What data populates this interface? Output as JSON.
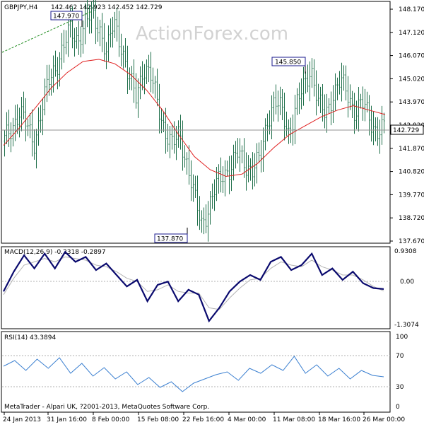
{
  "header": {
    "symbol_text": "GBPJPY,H4",
    "ohlc_text": "142.462 142.923 142.452 142.729"
  },
  "watermark": "ActionForex.com",
  "footer": "MetaTrader - Alpari UK, ?2001-2013, MetaQuotes Software Corp.",
  "colors": {
    "background": "#ffffff",
    "candle": "#1f6f4a",
    "moving_average": "#e02020",
    "macd_line": "#0a0a6e",
    "signal_line": "#b4b4b4",
    "rsi_line": "#3a7fd0",
    "trendline": "#1b8a1b",
    "label_box": "#1a1a8c"
  },
  "chart_data": [
    {
      "type": "candlestick",
      "title": "GBPJPY,H4",
      "ylim": [
        137.2,
        148.4
      ],
      "y_ticks": [
        "148.170",
        "147.120",
        "146.070",
        "145.020",
        "143.970",
        "142.920",
        "141.870",
        "140.820",
        "139.770",
        "138.720",
        "137.670"
      ],
      "current_price": "142.729",
      "overlay": "moving average",
      "annotations": [
        {
          "label": "147.970",
          "value": 147.97
        },
        {
          "label": "145.850",
          "value": 145.85
        },
        {
          "label": "137.870",
          "value": 137.87
        }
      ],
      "close_series": [
        142.2,
        142.8,
        143.6,
        142.9,
        142.1,
        143.5,
        144.8,
        145.6,
        146.4,
        147.2,
        146.8,
        147.5,
        147.9,
        147.4,
        146.1,
        147.6,
        146.6,
        145.0,
        144.2,
        145.6,
        145.1,
        143.9,
        142.7,
        141.9,
        142.6,
        141.2,
        139.6,
        138.5,
        139.2,
        140.1,
        140.8,
        141.0,
        141.6,
        141.2,
        140.9,
        141.3,
        143.2,
        144.0,
        143.5,
        142.6,
        143.8,
        144.6,
        145.6,
        143.9,
        143.3,
        144.4,
        144.9,
        144.3,
        143.6,
        143.9,
        143.2,
        142.7,
        142.73
      ],
      "ma_series": [
        142.0,
        142.8,
        143.7,
        144.6,
        145.3,
        145.8,
        145.9,
        145.7,
        145.2,
        144.5,
        143.6,
        142.5,
        141.5,
        140.9,
        140.6,
        140.7,
        141.2,
        141.9,
        142.5,
        142.9,
        143.3,
        143.6,
        143.8,
        143.6,
        143.4
      ]
    },
    {
      "type": "line",
      "title": "MACD(12,26,9) -0.2318 -0.2897",
      "y_ticks": [
        "0.9308",
        "0.00",
        "-1.3074"
      ],
      "ylim": [
        -1.3074,
        0.9308
      ],
      "series": [
        {
          "name": "MACD",
          "values": [
            -0.3,
            0.3,
            0.8,
            0.4,
            0.85,
            0.4,
            0.9,
            0.6,
            0.75,
            0.35,
            0.55,
            0.2,
            -0.15,
            0.05,
            -0.6,
            -0.1,
            0.0,
            -0.6,
            -0.25,
            -0.4,
            -1.2,
            -0.8,
            -0.3,
            0.0,
            0.2,
            0.05,
            0.6,
            0.75,
            0.35,
            0.5,
            0.85,
            0.2,
            0.4,
            0.05,
            0.3,
            -0.05,
            -0.2,
            -0.23
          ]
        },
        {
          "name": "Signal",
          "values": [
            -0.4,
            0.1,
            0.5,
            0.6,
            0.7,
            0.6,
            0.75,
            0.7,
            0.65,
            0.5,
            0.45,
            0.3,
            0.1,
            0.0,
            -0.3,
            -0.25,
            -0.1,
            -0.3,
            -0.35,
            -0.35,
            -0.8,
            -0.85,
            -0.5,
            -0.2,
            0.05,
            0.1,
            0.4,
            0.6,
            0.5,
            0.45,
            0.65,
            0.45,
            0.35,
            0.2,
            0.2,
            0.05,
            -0.15,
            -0.29
          ]
        }
      ]
    },
    {
      "type": "line",
      "title": "RSI(14) 43.3894",
      "y_ticks": [
        "100",
        "70",
        "30",
        "0"
      ],
      "ylim": [
        0,
        100
      ],
      "series": [
        {
          "name": "RSI",
          "values": [
            58,
            66,
            52,
            68,
            55,
            70,
            48,
            62,
            44,
            56,
            40,
            50,
            32,
            42,
            28,
            36,
            22,
            34,
            40,
            46,
            50,
            38,
            55,
            48,
            60,
            52,
            72,
            48,
            60,
            44,
            55,
            40,
            52,
            45,
            43
          ]
        }
      ]
    }
  ],
  "x_axis": {
    "labels": [
      "24 Jan 2013",
      "31 Jan 16:00",
      "8 Feb 00:00",
      "15 Feb 08:00",
      "22 Feb 16:00",
      "4 Mar 00:00",
      "11 Mar 08:00",
      "18 Mar 16:00",
      "26 Mar 00:00"
    ]
  }
}
